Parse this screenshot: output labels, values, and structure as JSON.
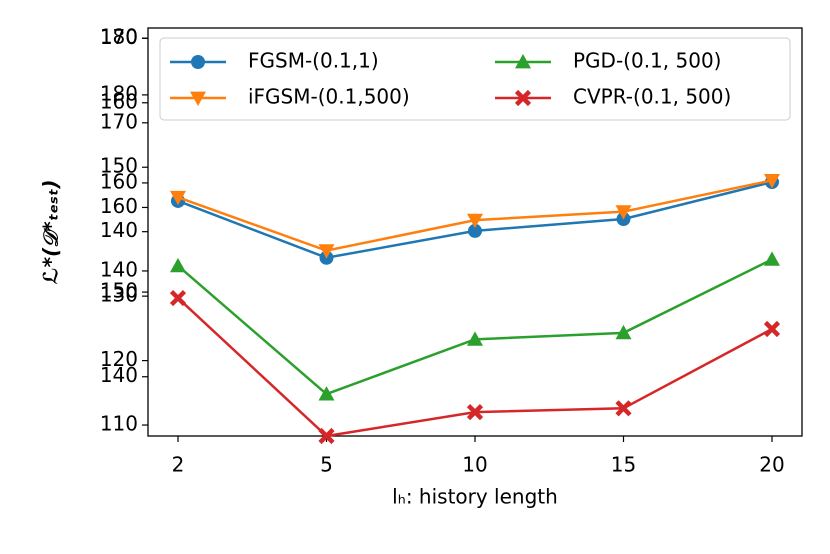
{
  "chart_data": {
    "type": "line",
    "xlabel": "lₕ: history length",
    "ylabel": "ℒ*(𝒟*ₜₑₛₜ)",
    "categories": [
      "2",
      "5",
      "10",
      "15",
      "20"
    ],
    "ylim": [
      108.3,
      171.6
    ],
    "yticks": [
      110,
      120,
      130,
      140,
      150,
      160,
      170
    ],
    "y2lim": [
      133.0,
      181.2
    ],
    "y2ticks": [
      140,
      150,
      160,
      170,
      180
    ],
    "y3lim": [
      102.5,
      195.2
    ],
    "y3ticks": [
      140,
      160,
      180
    ],
    "legend": "upper center",
    "series": [
      {
        "name": "FGSM-(0.1,1)",
        "color": "#1f77b4",
        "marker": "circle",
        "axis": "y3",
        "values": [
          155.9,
          143.0,
          149.1,
          151.8,
          160.2
        ]
      },
      {
        "name": "iFGSM-(0.1,500)",
        "color": "#ff7f0e",
        "marker": "triangle-down",
        "axis": "y2",
        "values": [
          161.2,
          154.9,
          158.5,
          159.5,
          163.2
        ]
      },
      {
        "name": "PGD-(0.1, 500)",
        "color": "#2ca02c",
        "marker": "triangle-up",
        "axis": "y",
        "values": [
          134.7,
          114.8,
          123.3,
          124.3,
          135.7
        ]
      },
      {
        "name": "CVPR-(0.1, 500)",
        "color": "#d62728",
        "marker": "x",
        "axis": "y",
        "values": [
          129.7,
          108.3,
          112.0,
          112.6,
          124.9
        ]
      }
    ]
  }
}
